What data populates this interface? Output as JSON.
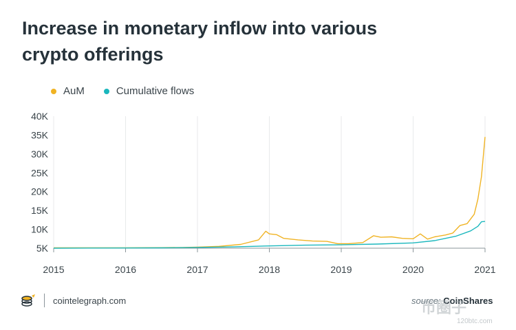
{
  "chart_data": {
    "type": "line",
    "title": "Increase in monetary inflow into various crypto offerings",
    "xlabel": "",
    "ylabel": "",
    "xlim": [
      2015,
      2021
    ],
    "ylim": [
      5000,
      40000
    ],
    "x_ticks": [
      "2015",
      "2016",
      "2017",
      "2018",
      "2019",
      "2020",
      "2021"
    ],
    "y_ticks": [
      "5K",
      "10K",
      "15K",
      "20K",
      "25K",
      "30K",
      "35K",
      "40K"
    ],
    "legend_position": "top-left",
    "grid": "vertical",
    "series": [
      {
        "name": "AuM",
        "color": "#f0b323",
        "points": [
          [
            2015.0,
            5100
          ],
          [
            2015.5,
            5100
          ],
          [
            2016.0,
            5100
          ],
          [
            2016.5,
            5150
          ],
          [
            2016.8,
            5200
          ],
          [
            2017.0,
            5300
          ],
          [
            2017.3,
            5500
          ],
          [
            2017.6,
            6000
          ],
          [
            2017.85,
            7200
          ],
          [
            2017.95,
            9500
          ],
          [
            2018.0,
            8800
          ],
          [
            2018.1,
            8600
          ],
          [
            2018.2,
            7600
          ],
          [
            2018.4,
            7200
          ],
          [
            2018.6,
            6900
          ],
          [
            2018.8,
            6800
          ],
          [
            2018.95,
            6200
          ],
          [
            2019.1,
            6200
          ],
          [
            2019.3,
            6500
          ],
          [
            2019.45,
            8300
          ],
          [
            2019.55,
            7900
          ],
          [
            2019.7,
            8000
          ],
          [
            2019.85,
            7600
          ],
          [
            2020.0,
            7500
          ],
          [
            2020.1,
            8800
          ],
          [
            2020.2,
            7400
          ],
          [
            2020.3,
            8000
          ],
          [
            2020.45,
            8500
          ],
          [
            2020.55,
            9000
          ],
          [
            2020.65,
            11000
          ],
          [
            2020.75,
            11500
          ],
          [
            2020.85,
            14000
          ],
          [
            2020.9,
            18000
          ],
          [
            2020.95,
            24000
          ],
          [
            2021.0,
            34500
          ]
        ]
      },
      {
        "name": "Cumulative flows",
        "color": "#1ab7bd",
        "points": [
          [
            2015.0,
            5000
          ],
          [
            2016.0,
            5050
          ],
          [
            2016.5,
            5100
          ],
          [
            2017.0,
            5200
          ],
          [
            2017.5,
            5350
          ],
          [
            2018.0,
            5600
          ],
          [
            2018.5,
            5800
          ],
          [
            2019.0,
            5900
          ],
          [
            2019.5,
            6100
          ],
          [
            2020.0,
            6400
          ],
          [
            2020.3,
            7000
          ],
          [
            2020.6,
            8200
          ],
          [
            2020.8,
            9600
          ],
          [
            2020.9,
            10800
          ],
          [
            2020.95,
            12000
          ],
          [
            2021.0,
            12100
          ]
        ]
      }
    ]
  },
  "footer": {
    "brand": "cointelegraph.com",
    "source_prefix": "source:",
    "source_name": "CoinShares",
    "watermark": "币圈子",
    "watermark_sub": "120btc.com"
  },
  "colors": {
    "text": "#26323a",
    "axis": "#8a9499",
    "grid": "#e8eaeb"
  }
}
